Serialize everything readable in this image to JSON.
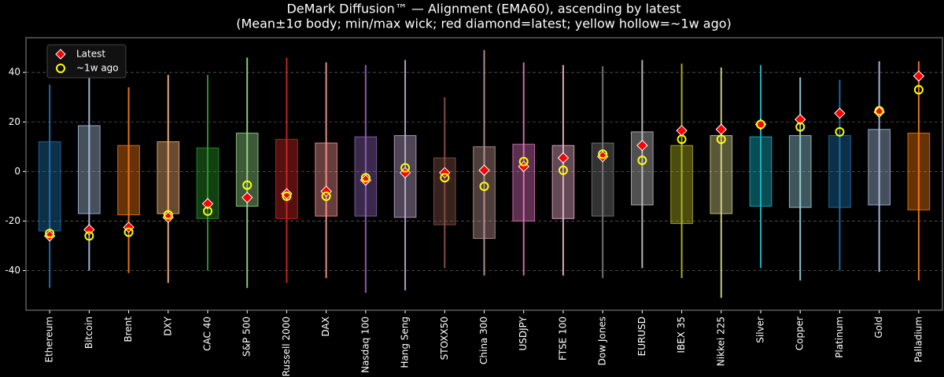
{
  "chart_data": {
    "type": "range-box",
    "title": "DeMark Diffusion™ — Alignment (EMA60), ascending by latest",
    "subtitle": "(Mean±1σ body; min/max wick; red diamond=latest; yellow hollow=~1w ago)",
    "categories": [
      "Ethereum",
      "Bitcoin",
      "Brent",
      "DXY",
      "CAC 40",
      "S&P 500",
      "Russell 2000",
      "DAX",
      "Nasdaq 100",
      "Hang Seng",
      "STOXX50",
      "China 300",
      "USDJPY",
      "FTSE 100",
      "Dow Jones",
      "EURUSD",
      "IBEX 35",
      "Nikkei 225",
      "Silver",
      "Copper",
      "Platinum",
      "Gold",
      "Palladium"
    ],
    "colors": [
      "#1f77b4",
      "#aec7e8",
      "#ff7f0e",
      "#ffbb78",
      "#2ca02c",
      "#98df8a",
      "#d62728",
      "#ff9896",
      "#9467bd",
      "#c5b0d5",
      "#8c564b",
      "#c49c94",
      "#e377c2",
      "#f7b6d2",
      "#7f7f7f",
      "#c7c7c7",
      "#bcbd22",
      "#dbdb8d",
      "#17becf",
      "#9edae5",
      "#1f77b4",
      "#aec7e8",
      "#ff7f0e"
    ],
    "body_low": [
      -24,
      -17,
      -17.5,
      -17,
      -19,
      -14,
      -19,
      -18,
      -18,
      -18.5,
      -21.5,
      -27,
      -20,
      -19,
      -18,
      -13.5,
      -21,
      -17,
      -14,
      -14.5,
      -14.5,
      -13.5,
      -15.5
    ],
    "body_high": [
      12,
      18.5,
      10.5,
      12,
      9.5,
      15.5,
      13,
      11.5,
      14,
      14.5,
      5.5,
      10,
      11,
      10.5,
      11.5,
      16,
      10.5,
      14.5,
      14,
      14.5,
      14.5,
      17,
      15.5
    ],
    "wick_min": [
      -47,
      -40,
      -41,
      -45,
      -40,
      -47,
      -45,
      -43,
      -49,
      -48,
      -39,
      -42,
      -42,
      -42,
      -43,
      -39,
      -43,
      -51,
      -39,
      -44,
      -40,
      -40.5,
      -44
    ],
    "wick_max": [
      35,
      44,
      34,
      39,
      39,
      46,
      46,
      44,
      43,
      45,
      30,
      49,
      44,
      43,
      42.5,
      45,
      43.5,
      42,
      43,
      38,
      37,
      44.5,
      44.5
    ],
    "series": [
      {
        "name": "Latest",
        "color": "#ff0000",
        "values": [
          -26,
          -23.5,
          -22.5,
          -18.5,
          -13,
          -10.5,
          -9,
          -8,
          -3.5,
          -0.5,
          -0.5,
          0.5,
          2,
          5.5,
          6,
          10.5,
          16.5,
          17,
          19,
          21,
          23.5,
          24,
          38.5
        ]
      },
      {
        "name": "~1w ago",
        "color": "#ffff00",
        "values": [
          -25,
          -26,
          -24.5,
          -17.5,
          -16,
          -5.5,
          -10,
          -10,
          -2.5,
          1.5,
          -2.5,
          -6,
          4,
          0.5,
          7,
          4.5,
          13,
          13,
          19,
          18,
          16,
          24.5,
          33
        ]
      }
    ],
    "ylim": [
      -56,
      54
    ],
    "yticks": [
      -40,
      -20,
      0,
      20,
      40
    ],
    "grid": true
  }
}
